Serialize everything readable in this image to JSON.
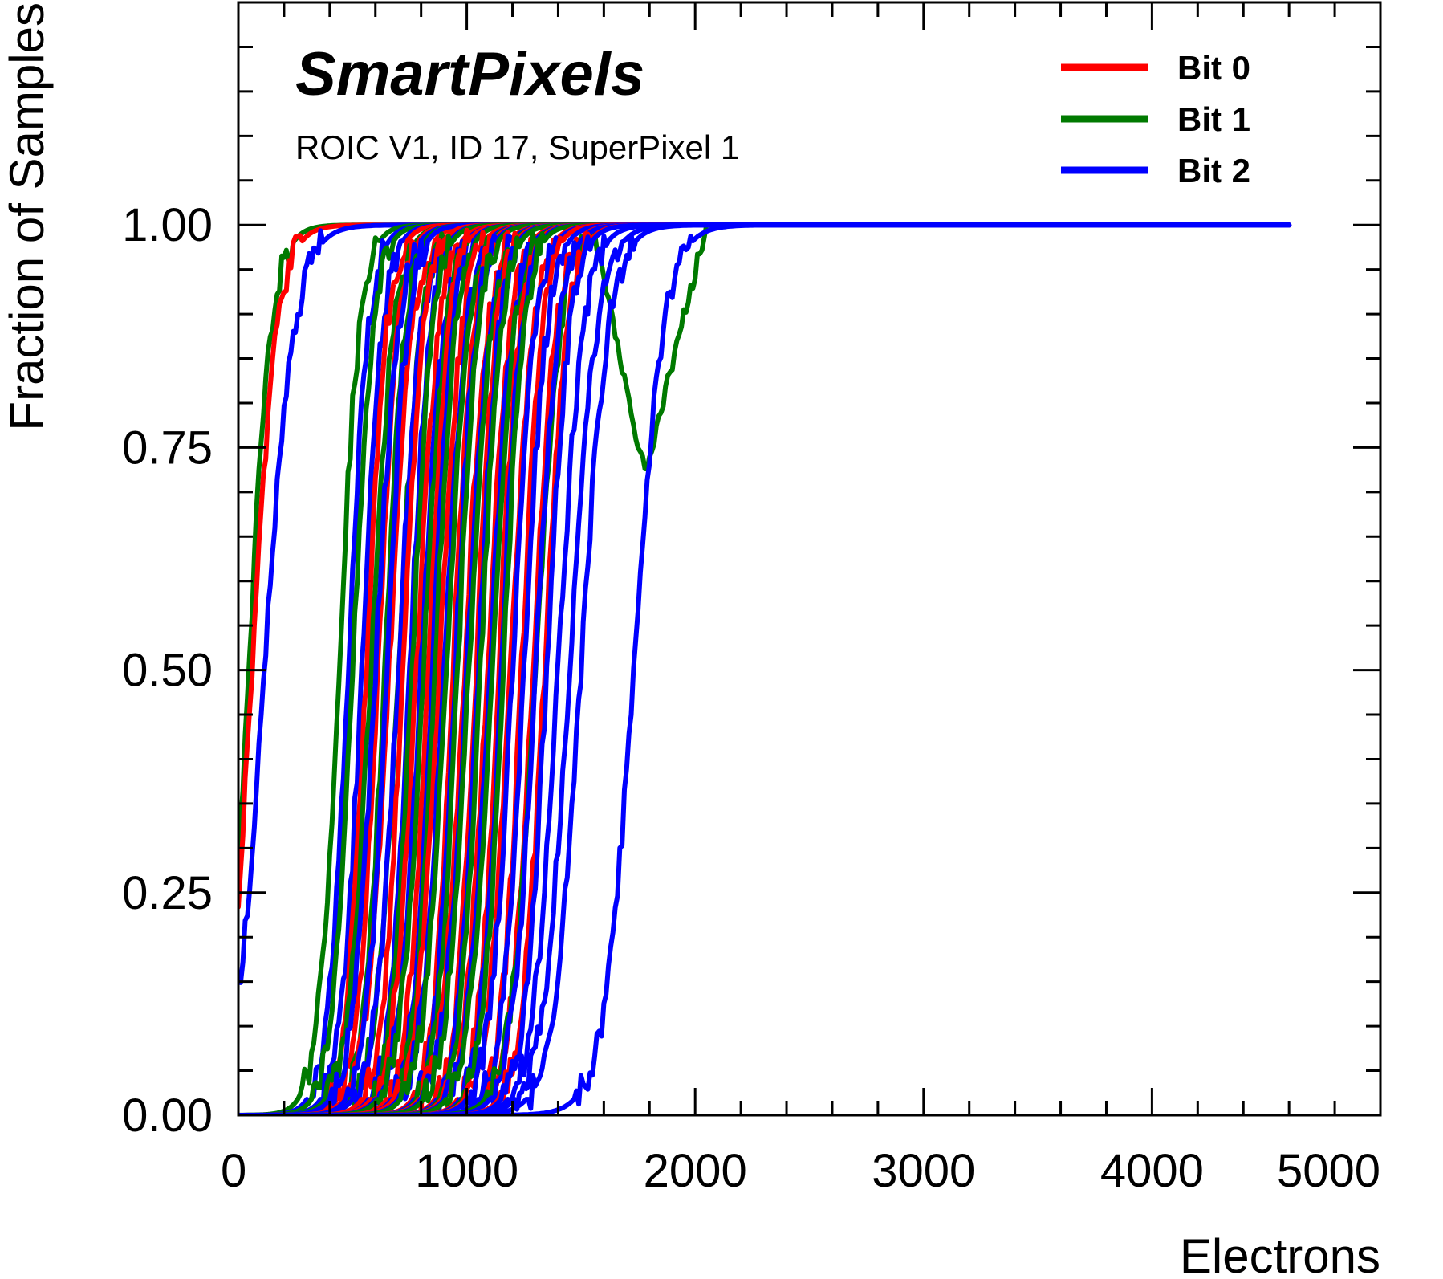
{
  "chart_data": {
    "type": "line",
    "title": "SmartPixels",
    "subtitle": "ROIC V1, ID 17, SuperPixel 1",
    "xlabel": "Electrons",
    "ylabel": "Fraction of Samples",
    "xlim": [
      0,
      5000
    ],
    "ylim": [
      0,
      1.25
    ],
    "x_ticks": [
      0,
      1000,
      2000,
      3000,
      4000,
      5000
    ],
    "x_tick_labels": [
      "0",
      "1000",
      "2000",
      "3000",
      "4000",
      "5000"
    ],
    "y_ticks": [
      0,
      0.25,
      0.5,
      0.75,
      1.0
    ],
    "y_tick_labels": [
      "0.00",
      "0.25",
      "0.50",
      "0.75",
      "1.00"
    ],
    "legend_position": "top-right",
    "colors": {
      "Bit 0": "#ff0000",
      "Bit 1": "#007a00",
      "Bit 2": "#0000ff"
    },
    "series": [
      {
        "name": "Bit 0",
        "color": "#ff0000",
        "curves": [
          {
            "x50": 60,
            "width": 55,
            "x_end": 4600
          },
          {
            "x50": 560,
            "width": 45
          },
          {
            "x50": 610,
            "width": 45
          },
          {
            "x50": 660,
            "width": 50
          },
          {
            "x50": 720,
            "width": 45
          },
          {
            "x50": 780,
            "width": 50
          },
          {
            "x50": 830,
            "width": 45
          },
          {
            "x50": 880,
            "width": 50
          },
          {
            "x50": 940,
            "width": 45
          },
          {
            "x50": 990,
            "width": 50
          },
          {
            "x50": 1040,
            "width": 45
          },
          {
            "x50": 1090,
            "width": 50
          },
          {
            "x50": 1140,
            "width": 45
          },
          {
            "x50": 1190,
            "width": 50
          },
          {
            "x50": 1240,
            "width": 45
          },
          {
            "x50": 1290,
            "width": 50
          },
          {
            "x50": 1340,
            "width": 50
          }
        ]
      },
      {
        "name": "Bit 1",
        "color": "#007a00",
        "curves": [
          {
            "x50": 45,
            "width": 50,
            "x_end": 4600
          },
          {
            "x50": 440,
            "width": 45
          },
          {
            "x50": 500,
            "width": 45
          },
          {
            "x50": 580,
            "width": 50
          },
          {
            "x50": 640,
            "width": 45
          },
          {
            "x50": 700,
            "width": 50
          },
          {
            "x50": 760,
            "width": 45
          },
          {
            "x50": 810,
            "width": 50
          },
          {
            "x50": 860,
            "width": 45
          },
          {
            "x50": 910,
            "width": 50
          },
          {
            "x50": 960,
            "width": 45
          },
          {
            "x50": 1010,
            "width": 50
          },
          {
            "x50": 1060,
            "width": 45
          },
          {
            "x50": 1110,
            "width": 50
          },
          {
            "x50": 1160,
            "width": 45
          },
          {
            "x50": 1300,
            "width": 55,
            "dip": {
              "start": 1550,
              "center": 1780,
              "end": 2050,
              "min": 0.72
            }
          }
        ]
      },
      {
        "name": "Bit 2",
        "color": "#0000ff",
        "curves": [
          {
            "x50": 115,
            "width": 65,
            "x_end": 4600
          },
          {
            "x50": 480,
            "width": 45
          },
          {
            "x50": 540,
            "width": 45
          },
          {
            "x50": 600,
            "width": 50
          },
          {
            "x50": 650,
            "width": 45
          },
          {
            "x50": 700,
            "width": 50
          },
          {
            "x50": 750,
            "width": 45
          },
          {
            "x50": 800,
            "width": 50
          },
          {
            "x50": 850,
            "width": 45
          },
          {
            "x50": 900,
            "width": 50
          },
          {
            "x50": 950,
            "width": 45
          },
          {
            "x50": 1000,
            "width": 50
          },
          {
            "x50": 1050,
            "width": 45
          },
          {
            "x50": 1100,
            "width": 50
          },
          {
            "x50": 1150,
            "width": 45
          },
          {
            "x50": 1200,
            "width": 50
          },
          {
            "x50": 1250,
            "width": 50
          },
          {
            "x50": 1300,
            "width": 50
          },
          {
            "x50": 1350,
            "width": 50
          },
          {
            "x50": 1400,
            "width": 55
          },
          {
            "x50": 1450,
            "width": 60
          },
          {
            "x50": 1500,
            "width": 60
          },
          {
            "x50": 1730,
            "width": 65,
            "dip": {
              "start": 1600,
              "center": 1720,
              "end": 1950,
              "min": 0.89
            }
          }
        ]
      }
    ]
  }
}
